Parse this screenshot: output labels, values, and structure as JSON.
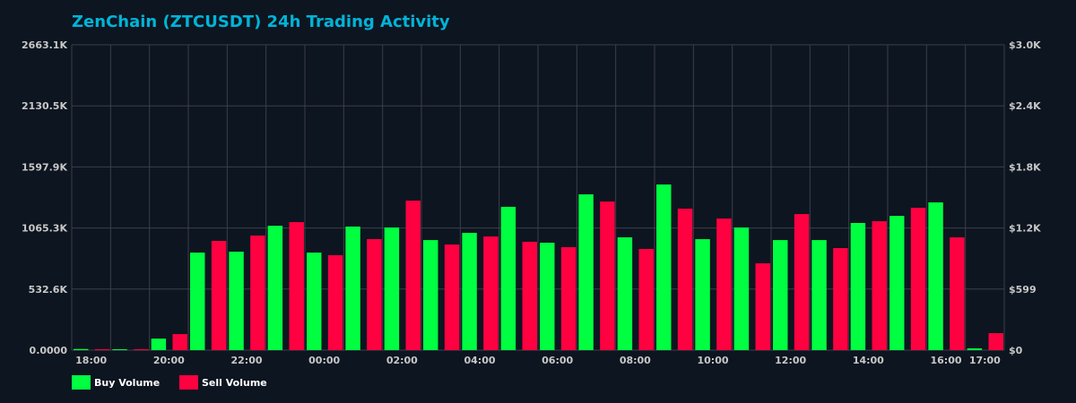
{
  "chart_data": {
    "type": "bar",
    "title": "ZenChain (ZTCUSDT) 24h Trading Activity",
    "categories": [
      "18:00",
      "19:00",
      "20:00",
      "21:00",
      "22:00",
      "23:00",
      "00:00",
      "01:00",
      "02:00",
      "03:00",
      "04:00",
      "05:00",
      "06:00",
      "07:00",
      "08:00",
      "09:00",
      "10:00",
      "11:00",
      "12:00",
      "13:00",
      "14:00",
      "15:00",
      "16:00",
      "17:00"
    ],
    "x_tick_labels": [
      "18:00",
      "20:00",
      "22:00",
      "00:00",
      "02:00",
      "04:00",
      "06:00",
      "08:00",
      "10:00",
      "12:00",
      "14:00",
      "16:00",
      "17:00"
    ],
    "series": [
      {
        "name": "Buy Volume",
        "axis": "left",
        "color": "#00ff41",
        "values": [
          10,
          8,
          101,
          851,
          859,
          1085,
          851,
          1078,
          1070,
          960,
          1023,
          1250,
          937,
          1359,
          984,
          1445,
          968,
          1070,
          960,
          960,
          1109,
          1171,
          1289,
          16
        ]
      },
      {
        "name": "Sell Volume",
        "axis": "right",
        "color": "#ff0040",
        "values": [
          5,
          5,
          158,
          1073,
          1126,
          1258,
          933,
          1091,
          1469,
          1038,
          1117,
          1065,
          1012,
          1460,
          994,
          1390,
          1293,
          853,
          1337,
          1003,
          1267,
          1399,
          1108,
          167
        ]
      }
    ],
    "left_axis": {
      "ylim": [
        0,
        2663.1
      ],
      "tick_labels": [
        "0.0000",
        "532.6K",
        "1065.3K",
        "1597.9K",
        "2130.5K",
        "2663.1K"
      ]
    },
    "right_axis": {
      "ylim": [
        0,
        3000
      ],
      "tick_labels": [
        "$0",
        "$599",
        "$1.2K",
        "$1.8K",
        "$2.4K",
        "$3.0K"
      ]
    },
    "grid": true,
    "legend_position": "bottom-left"
  }
}
